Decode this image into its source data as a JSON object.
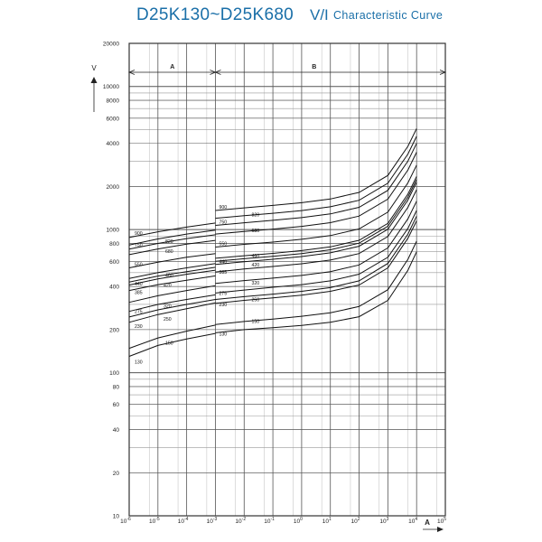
{
  "title": {
    "main": "D25K130~D25K680",
    "vi": "V/I",
    "sub": "Characteristic Curve"
  },
  "chart_data": {
    "type": "line",
    "x_scale": "log",
    "y_scale": "log",
    "xlim": [
      1e-06,
      100000
    ],
    "ylim": [
      10,
      20000
    ],
    "xlabel": "A",
    "ylabel": "V",
    "grid": true,
    "x_ticks": [
      {
        "value": 1e-06,
        "label": "10-6"
      },
      {
        "value": 1e-05,
        "label": "10-5"
      },
      {
        "value": 0.0001,
        "label": "10-4"
      },
      {
        "value": 0.001,
        "label": "10-3"
      },
      {
        "value": 0.01,
        "label": "10-2"
      },
      {
        "value": 0.1,
        "label": "10-1"
      },
      {
        "value": 1,
        "label": "100"
      },
      {
        "value": 10,
        "label": "101"
      },
      {
        "value": 100,
        "label": "102"
      },
      {
        "value": 1000,
        "label": "103"
      },
      {
        "value": 10000,
        "label": "104"
      },
      {
        "value": 100000,
        "label": "105"
      }
    ],
    "y_ticks": [
      {
        "value": 10,
        "label": "10"
      },
      {
        "value": 20,
        "label": "20"
      },
      {
        "value": 40,
        "label": "40"
      },
      {
        "value": 60,
        "label": "60"
      },
      {
        "value": 80,
        "label": "80"
      },
      {
        "value": 100,
        "label": "100"
      },
      {
        "value": 200,
        "label": "200"
      },
      {
        "value": 400,
        "label": "400"
      },
      {
        "value": 600,
        "label": "600"
      },
      {
        "value": 800,
        "label": "800"
      },
      {
        "value": 1000,
        "label": "1000"
      },
      {
        "value": 2000,
        "label": "2000"
      },
      {
        "value": 4000,
        "label": "4000"
      },
      {
        "value": 6000,
        "label": "6000"
      },
      {
        "value": 8000,
        "label": "8000"
      },
      {
        "value": 10000,
        "label": "10000"
      },
      {
        "value": 20000,
        "label": "20000"
      }
    ],
    "regions": [
      {
        "label": "A",
        "from": 1e-06,
        "to": 0.001
      },
      {
        "label": "B",
        "from": 0.001,
        "to": 100000
      }
    ],
    "series": [
      {
        "name": "130",
        "a": [
          [
            1e-06,
            130
          ],
          [
            1e-05,
            155
          ],
          [
            0.0001,
            172
          ],
          [
            0.001,
            188
          ]
        ],
        "b": [
          [
            0.001,
            190
          ],
          [
            0.01,
            200
          ],
          [
            0.1,
            206
          ],
          [
            1,
            214
          ],
          [
            10,
            225
          ],
          [
            100,
            246
          ],
          [
            1000,
            320
          ],
          [
            5000,
            520
          ],
          [
            10000,
            700
          ]
        ]
      },
      {
        "name": "150",
        "a": [
          [
            1e-06,
            148
          ],
          [
            1e-05,
            175
          ],
          [
            0.0001,
            195
          ],
          [
            0.001,
            215
          ]
        ],
        "b": [
          [
            0.001,
            217
          ],
          [
            0.01,
            228
          ],
          [
            0.1,
            237
          ],
          [
            1,
            248
          ],
          [
            10,
            262
          ],
          [
            100,
            290
          ],
          [
            1000,
            380
          ],
          [
            5000,
            620
          ],
          [
            10000,
            830
          ]
        ]
      },
      {
        "name": "230",
        "a": [
          [
            1e-06,
            225
          ],
          [
            1e-05,
            255
          ],
          [
            0.0001,
            280
          ],
          [
            0.001,
            308
          ]
        ],
        "b": [
          [
            0.001,
            305
          ],
          [
            0.01,
            320
          ],
          [
            0.1,
            333
          ],
          [
            1,
            348
          ],
          [
            10,
            370
          ],
          [
            100,
            410
          ],
          [
            1000,
            540
          ],
          [
            5000,
            870
          ],
          [
            10000,
            1150
          ]
        ]
      },
      {
        "name": "250",
        "a": [
          [
            1e-06,
            245
          ],
          [
            1e-05,
            275
          ],
          [
            0.0001,
            300
          ],
          [
            0.001,
            325
          ]
        ],
        "b": [
          [
            0.001,
            325
          ],
          [
            0.01,
            340
          ],
          [
            0.1,
            354
          ],
          [
            1,
            370
          ],
          [
            10,
            393
          ],
          [
            100,
            438
          ],
          [
            1000,
            580
          ],
          [
            5000,
            930
          ],
          [
            10000,
            1240
          ]
        ]
      },
      {
        "name": "275",
        "a": [
          [
            1e-06,
            268
          ],
          [
            1e-05,
            300
          ],
          [
            0.0001,
            325
          ],
          [
            0.001,
            350
          ]
        ],
        "b": [
          [
            0.001,
            360
          ],
          [
            0.01,
            378
          ],
          [
            0.1,
            395
          ],
          [
            1,
            412
          ],
          [
            10,
            438
          ],
          [
            100,
            488
          ],
          [
            1000,
            640
          ],
          [
            5000,
            1020
          ],
          [
            10000,
            1360
          ]
        ]
      },
      {
        "name": "320",
        "a": [
          [
            1e-06,
            310
          ],
          [
            1e-05,
            345
          ],
          [
            0.0001,
            375
          ],
          [
            0.001,
            405
          ]
        ],
        "b": [
          [
            0.001,
            420
          ],
          [
            0.01,
            440
          ],
          [
            0.1,
            458
          ],
          [
            1,
            478
          ],
          [
            10,
            508
          ],
          [
            100,
            566
          ],
          [
            1000,
            745
          ],
          [
            5000,
            1190
          ],
          [
            10000,
            1580
          ]
        ]
      },
      {
        "name": "385",
        "a": [
          [
            1e-06,
            375
          ],
          [
            1e-05,
            412
          ],
          [
            0.0001,
            443
          ],
          [
            0.001,
            475
          ]
        ],
        "b": [
          [
            0.001,
            505
          ],
          [
            0.01,
            530
          ],
          [
            0.1,
            552
          ],
          [
            1,
            577
          ],
          [
            10,
            612
          ],
          [
            100,
            680
          ],
          [
            1000,
            895
          ],
          [
            5000,
            1430
          ],
          [
            10000,
            1900
          ]
        ]
      },
      {
        "name": "420",
        "a": [
          [
            1e-06,
            410
          ],
          [
            1e-05,
            452
          ],
          [
            0.0001,
            487
          ],
          [
            0.001,
            520
          ]
        ],
        "b": [
          [
            0.001,
            570
          ],
          [
            0.01,
            596
          ],
          [
            0.1,
            620
          ],
          [
            1,
            648
          ],
          [
            10,
            688
          ],
          [
            100,
            765
          ],
          [
            1000,
            1005
          ],
          [
            5000,
            1610
          ],
          [
            10000,
            2140
          ]
        ]
      },
      {
        "name": "440",
        "a": [
          [
            1e-06,
            430
          ],
          [
            1e-05,
            473
          ],
          [
            0.0001,
            508
          ],
          [
            0.001,
            545
          ]
        ],
        "b": [
          [
            0.001,
            600
          ],
          [
            0.01,
            626
          ],
          [
            0.1,
            651
          ],
          [
            1,
            680
          ],
          [
            10,
            722
          ],
          [
            100,
            803
          ],
          [
            1000,
            1055
          ],
          [
            5000,
            1690
          ],
          [
            10000,
            2240
          ]
        ]
      },
      {
        "name": "460",
        "a": [
          [
            1e-06,
            455
          ],
          [
            1e-05,
            500
          ],
          [
            0.0001,
            540
          ],
          [
            0.001,
            578
          ]
        ],
        "b": [
          [
            0.001,
            630
          ],
          [
            0.01,
            656
          ],
          [
            0.1,
            682
          ],
          [
            1,
            713
          ],
          [
            10,
            757
          ],
          [
            100,
            842
          ],
          [
            1000,
            1105
          ],
          [
            5000,
            1770
          ],
          [
            10000,
            2350
          ]
        ]
      },
      {
        "name": "550",
        "a": [
          [
            1e-06,
            540
          ],
          [
            1e-05,
            592
          ],
          [
            0.0001,
            640
          ],
          [
            0.001,
            680
          ]
        ],
        "b": [
          [
            0.001,
            755
          ],
          [
            0.01,
            788
          ],
          [
            0.1,
            818
          ],
          [
            1,
            855
          ],
          [
            10,
            907
          ],
          [
            100,
            1010
          ],
          [
            1000,
            1325
          ],
          [
            5000,
            2120
          ],
          [
            10000,
            2820
          ]
        ]
      },
      {
        "name": "680",
        "a": [
          [
            1e-06,
            668
          ],
          [
            1e-05,
            732
          ],
          [
            0.0001,
            790
          ],
          [
            0.001,
            840
          ]
        ],
        "b": [
          [
            0.001,
            930
          ],
          [
            0.01,
            970
          ],
          [
            0.1,
            1008
          ],
          [
            1,
            1053
          ],
          [
            10,
            1118
          ],
          [
            100,
            1243
          ],
          [
            1000,
            1633
          ],
          [
            5000,
            2610
          ],
          [
            10000,
            3470
          ]
        ]
      },
      {
        "name": "750",
        "a": [
          [
            1e-06,
            730
          ],
          [
            1e-05,
            800
          ],
          [
            0.0001,
            865
          ],
          [
            0.001,
            920
          ]
        ],
        "b": [
          [
            0.001,
            1070
          ],
          [
            0.01,
            1115
          ],
          [
            0.1,
            1160
          ],
          [
            1,
            1212
          ],
          [
            10,
            1287
          ],
          [
            100,
            1430
          ],
          [
            1000,
            1880
          ],
          [
            5000,
            3010
          ],
          [
            10000,
            4000
          ]
        ]
      },
      {
        "name": "820",
        "a": [
          [
            1e-06,
            780
          ],
          [
            1e-05,
            860
          ],
          [
            0.0001,
            930
          ],
          [
            0.001,
            990
          ]
        ],
        "b": [
          [
            0.001,
            1200
          ],
          [
            0.01,
            1250
          ],
          [
            0.1,
            1300
          ],
          [
            1,
            1358
          ],
          [
            10,
            1442
          ],
          [
            100,
            1603
          ],
          [
            1000,
            2107
          ],
          [
            5000,
            3370
          ],
          [
            10000,
            4480
          ]
        ]
      },
      {
        "name": "900",
        "a": [
          [
            1e-06,
            880
          ],
          [
            1e-05,
            965
          ],
          [
            0.0001,
            1040
          ],
          [
            0.001,
            1110
          ]
        ],
        "b": [
          [
            0.001,
            1360
          ],
          [
            0.01,
            1418
          ],
          [
            0.1,
            1474
          ],
          [
            1,
            1540
          ],
          [
            10,
            1635
          ],
          [
            100,
            1818
          ],
          [
            1000,
            2390
          ],
          [
            5000,
            3820
          ],
          [
            10000,
            5080
          ]
        ]
      }
    ],
    "curve_labels_a": [
      "900",
      "820",
      "750",
      "680",
      "550",
      "460",
      "440",
      "420",
      "385",
      "320",
      "275",
      "250",
      "230",
      "150",
      "130"
    ],
    "curve_labels_b": [
      "900",
      "820",
      "750",
      "680",
      "550",
      "460",
      "440",
      "420",
      "385",
      "320",
      "275",
      "250",
      "230",
      "150",
      "130"
    ],
    "label_positions_note": "labels placed near curve starts in each region"
  }
}
